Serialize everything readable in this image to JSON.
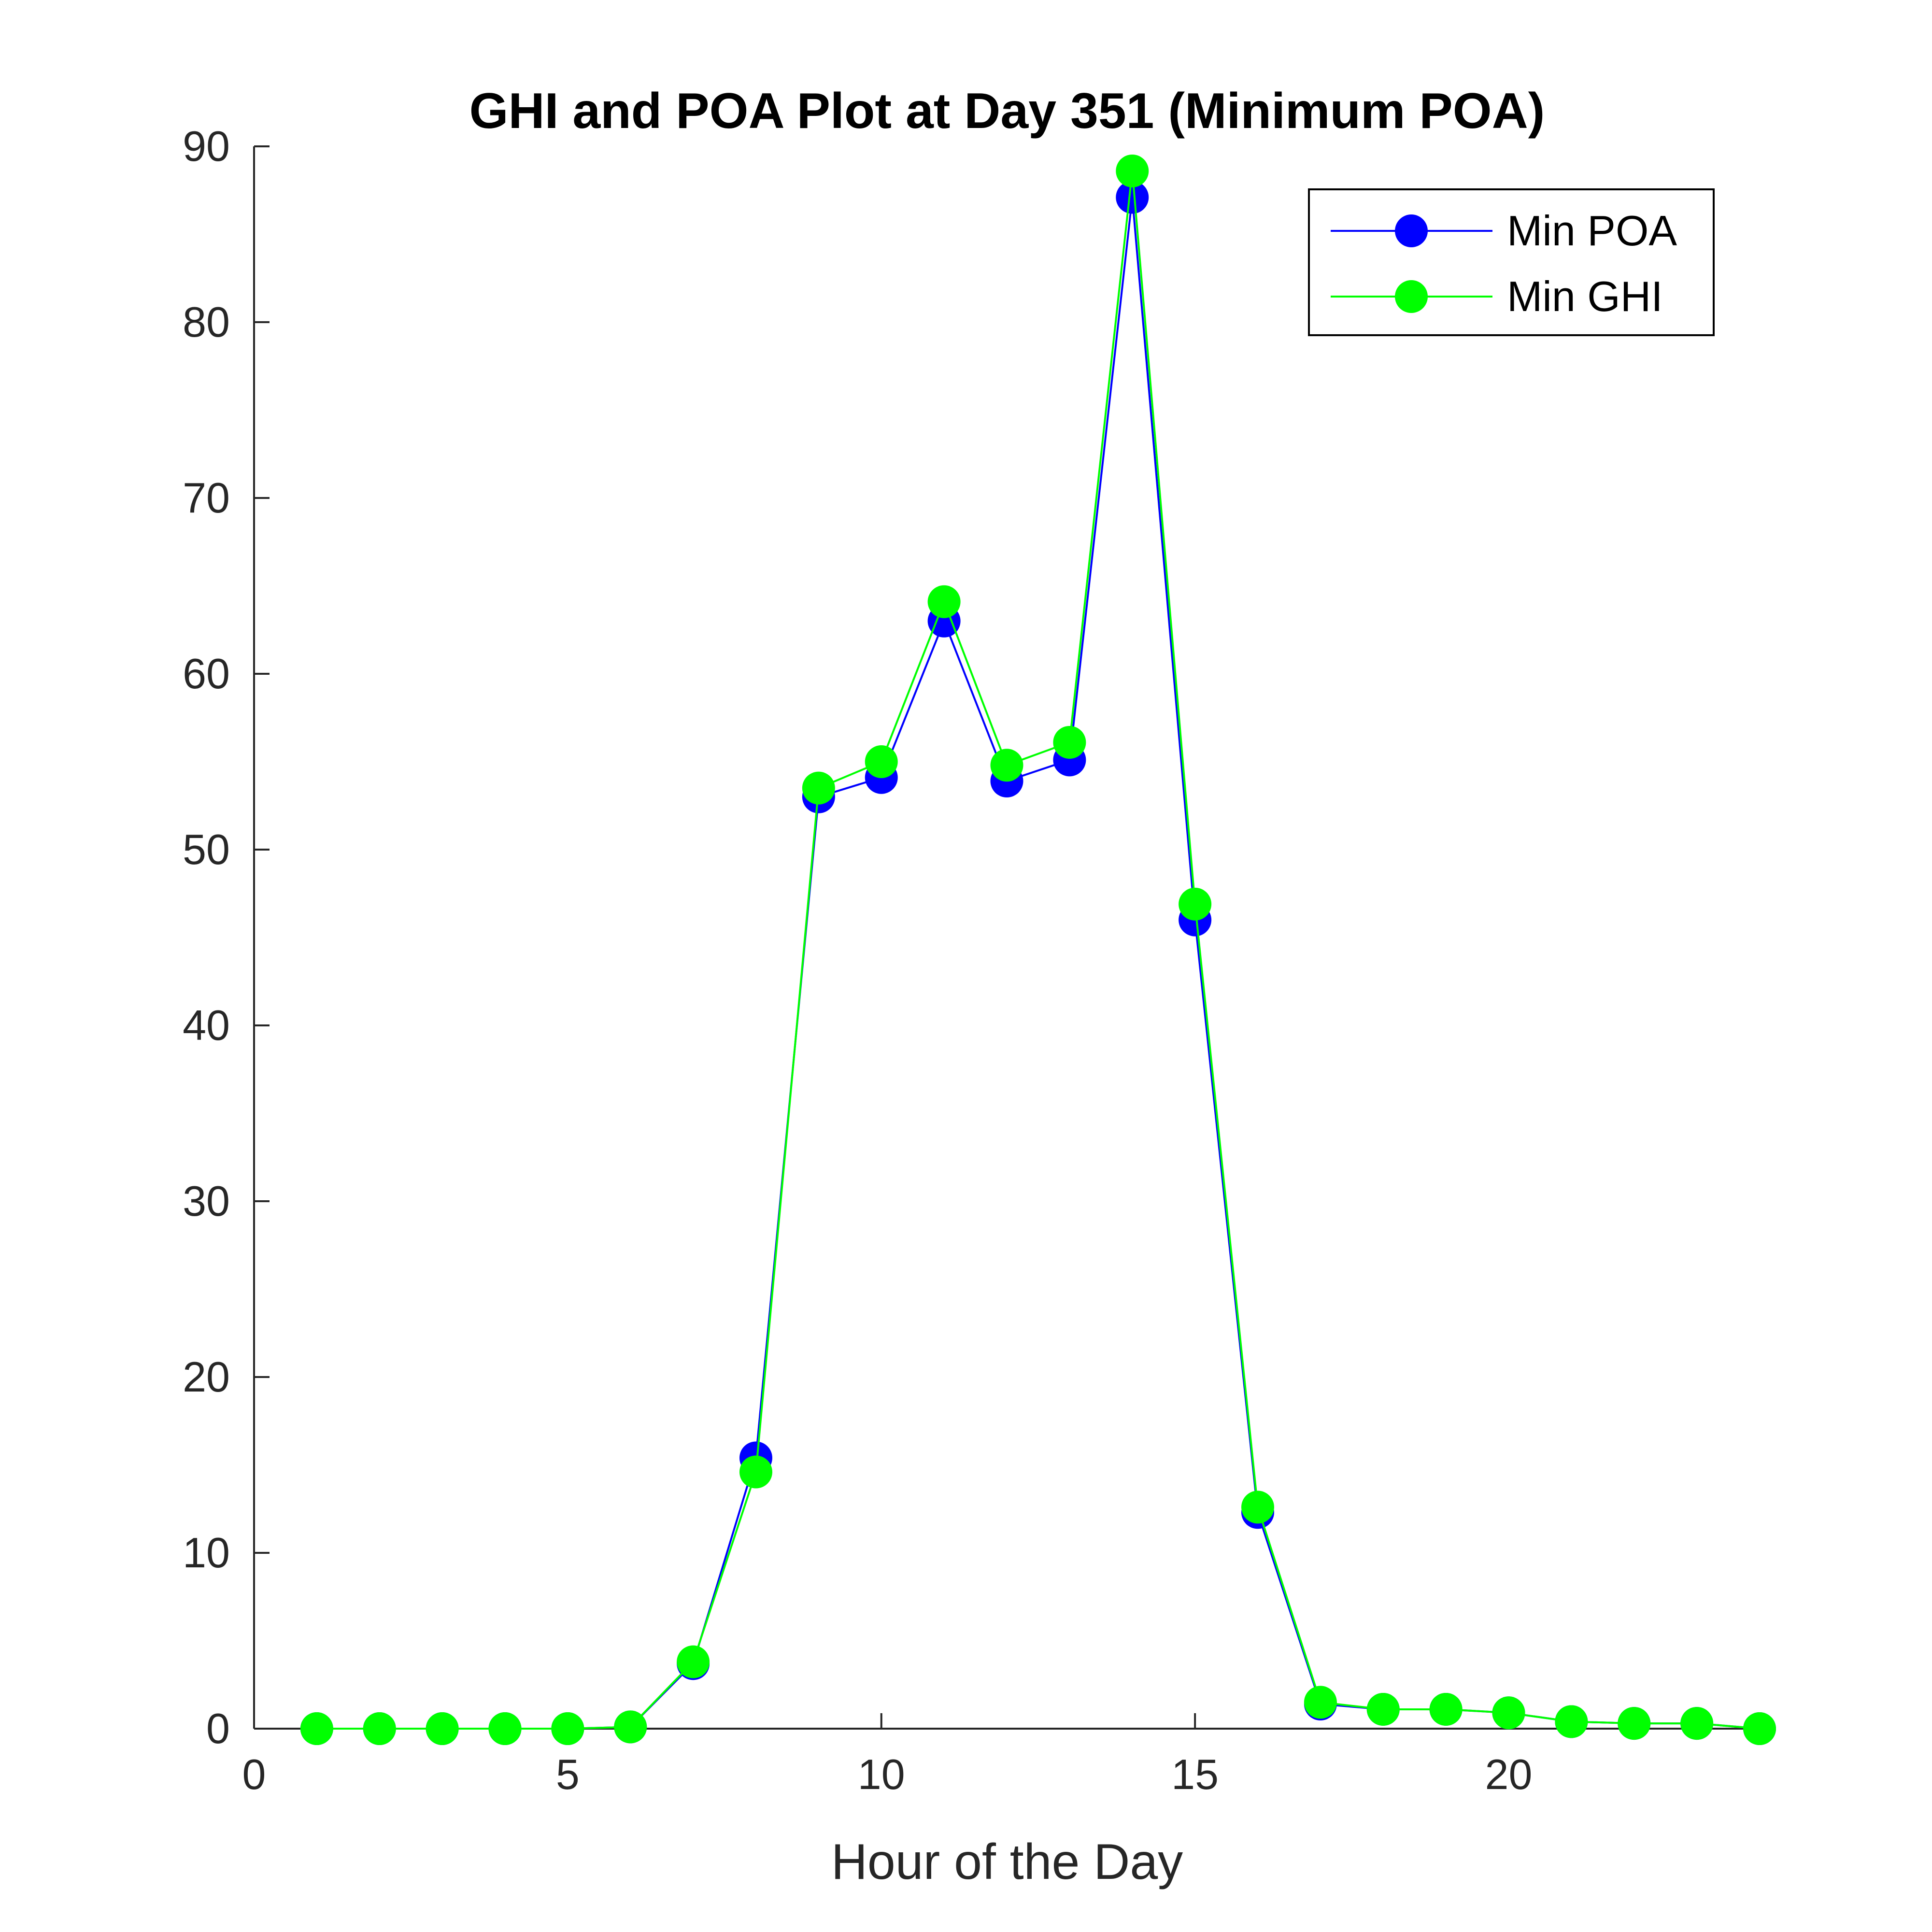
{
  "chart_data": {
    "type": "line",
    "title": "GHI and POA Plot at Day 351 (Minimum POA)",
    "xlabel": "Hour of the Day",
    "ylabel": "",
    "xlim": [
      0,
      24
    ],
    "ylim": [
      0,
      90
    ],
    "xticks": [
      0,
      5,
      10,
      15,
      20
    ],
    "yticks": [
      0,
      10,
      20,
      30,
      40,
      50,
      60,
      70,
      80,
      90
    ],
    "grid": false,
    "legend_position": "top-right",
    "x": [
      1,
      2,
      3,
      4,
      5,
      6,
      7,
      8,
      9,
      10,
      11,
      12,
      13,
      14,
      15,
      16,
      17,
      18,
      19,
      20,
      21,
      22,
      23,
      24
    ],
    "series": [
      {
        "name": "Min POA",
        "color": "#0000ff",
        "values": [
          0,
          0,
          0,
          0,
          0,
          0.1,
          3.7,
          15.4,
          53.0,
          54.1,
          63.0,
          53.9,
          55.1,
          87.1,
          46.0,
          12.3,
          1.4,
          1.1,
          1.1,
          0.9,
          0.4,
          0.3,
          0.3,
          0
        ]
      },
      {
        "name": "Min GHI",
        "color": "#00ff00",
        "values": [
          0,
          0,
          0,
          0,
          0,
          0.1,
          3.8,
          14.6,
          53.5,
          55.0,
          64.1,
          54.8,
          56.1,
          88.6,
          46.9,
          12.6,
          1.5,
          1.1,
          1.1,
          0.9,
          0.4,
          0.3,
          0.3,
          0
        ]
      }
    ]
  }
}
